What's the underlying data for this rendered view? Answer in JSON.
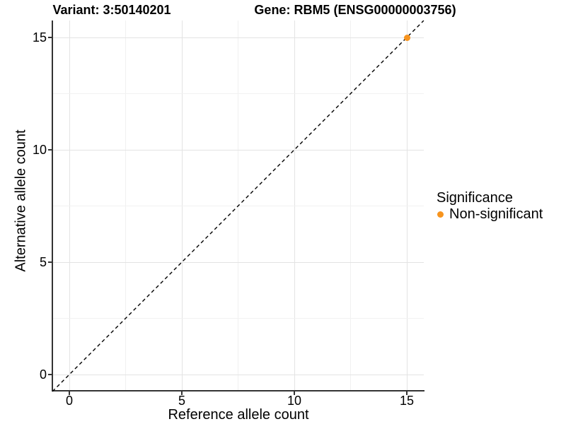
{
  "titles": {
    "variant": "Variant: 3:50140201",
    "gene": "Gene: RBM5 (ENSG00000003756)"
  },
  "chart_data": {
    "type": "scatter",
    "title_left": "Variant: 3:50140201",
    "title_right": "Gene: RBM5 (ENSG00000003756)",
    "xlabel": "Reference allele count",
    "ylabel": "Alternative allele count",
    "x_ticks": [
      0,
      5,
      10,
      15
    ],
    "y_ticks": [
      0,
      5,
      10,
      15
    ],
    "xlim": [
      -0.75,
      15.75
    ],
    "ylim": [
      -0.75,
      15.75
    ],
    "grid": "major and minor gridlines, light gray on white; dark left and bottom axis lines",
    "points": [
      {
        "x": 15,
        "y": 15,
        "series": "Non-significant",
        "color": "#F7941E"
      }
    ],
    "identity_line": {
      "style": "dashed",
      "color": "#000000",
      "x1": -0.75,
      "y1": -0.75,
      "x2": 15.75,
      "y2": 15.75
    },
    "legend": {
      "title": "Significance",
      "position": "right",
      "entries": [
        {
          "label": "Non-significant",
          "color": "#F7941E",
          "marker": "circle"
        }
      ]
    }
  },
  "colors": {
    "background": "#FFFFFF",
    "axis_line": "#333333",
    "grid_major": "#E3E3E3",
    "grid_minor": "#F1F1F1",
    "dashed_line": "#000000",
    "point": "#F7941E",
    "text": "#000000"
  }
}
